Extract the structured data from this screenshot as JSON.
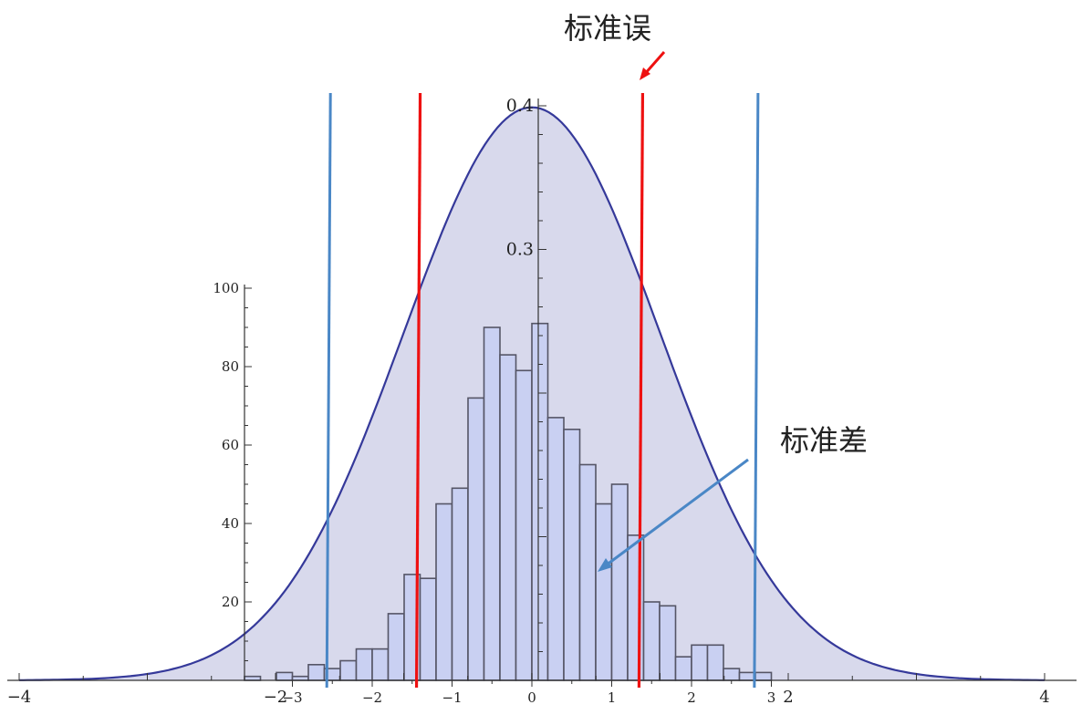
{
  "annotations": {
    "standard_error": "标准误",
    "standard_deviation": "标准差"
  },
  "colors": {
    "curve_fill": "#d8d9ec",
    "curve_stroke": "#35399a",
    "bar_fill": "#c9d0f2",
    "bar_stroke": "#555566",
    "red_line": "#ee1111",
    "blue_line": "#4a87c6",
    "axis": "#333333"
  },
  "chart_data": [
    {
      "type": "area",
      "description_role": "standard normal density",
      "x_range": [
        -4,
        4
      ],
      "y_range": [
        0,
        0.4
      ],
      "x_ticks": [
        "−4",
        "−2",
        "2",
        "4"
      ],
      "y_ticks": [
        "0.3",
        "0.4"
      ],
      "mean": 0,
      "sd": 1,
      "vertical_lines": [
        {
          "color": "red",
          "x": -0.9
        },
        {
          "color": "red",
          "x": 0.85
        },
        {
          "color": "blue",
          "x": -1.6
        },
        {
          "color": "blue",
          "x": 1.75
        }
      ]
    },
    {
      "type": "bar",
      "description_role": "histogram",
      "x_range": [
        -3.5,
        3.1
      ],
      "y_range": [
        0,
        100
      ],
      "x_ticks": [
        "−3",
        "−2",
        "−1",
        "0",
        "1",
        "2",
        "3"
      ],
      "y_ticks": [
        "20",
        "40",
        "60",
        "80",
        "100"
      ],
      "bin_width": 0.2,
      "bin_start": -3.6,
      "values": [
        1,
        0,
        2,
        1,
        4,
        3,
        5,
        8,
        8,
        17,
        27,
        26,
        45,
        49,
        72,
        90,
        83,
        79,
        91,
        67,
        64,
        55,
        45,
        50,
        37,
        20,
        19,
        6,
        9,
        9,
        3,
        2,
        2,
        0
      ]
    }
  ]
}
